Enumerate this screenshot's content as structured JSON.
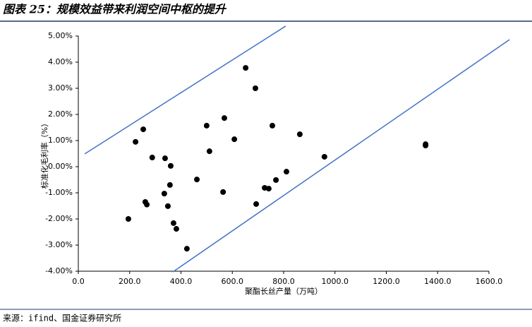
{
  "chart_data": {
    "type": "scatter",
    "title": "图表 25：规模效益带来利润空间中枢的提升",
    "source": "来源：ifind、国金证券研究所",
    "x_label": "聚酯长丝产量（万吨）",
    "y_label": "标准化毛利率（%）",
    "xlim": [
      0,
      1600
    ],
    "xticks": [
      {
        "value": 0,
        "label": "0.0"
      },
      {
        "value": 200,
        "label": "200.0"
      },
      {
        "value": 400,
        "label": "400.0"
      },
      {
        "value": 600,
        "label": "600.0"
      },
      {
        "value": 800,
        "label": "800.0"
      },
      {
        "value": 1000,
        "label": "1000.0"
      },
      {
        "value": 1200,
        "label": "1200.0"
      },
      {
        "value": 1400,
        "label": "1400.0"
      },
      {
        "value": 1600,
        "label": "1600.0"
      }
    ],
    "ylim": [
      -4,
      5
    ],
    "yticks": [
      {
        "value": -4,
        "label": "-4.00%"
      },
      {
        "value": -3,
        "label": "-3.00%"
      },
      {
        "value": -2,
        "label": "-2.00%"
      },
      {
        "value": -1,
        "label": "-1.00%"
      },
      {
        "value": 0,
        "label": "0.00%"
      },
      {
        "value": 1,
        "label": "1.00%"
      },
      {
        "value": 2,
        "label": "2.00%"
      },
      {
        "value": 3,
        "label": "3.00%"
      },
      {
        "value": 4,
        "label": "4.00%"
      },
      {
        "value": 5,
        "label": "5.00%"
      }
    ],
    "series": [
      {
        "color": "#000000",
        "x": [
          195,
          223,
          253,
          261,
          267,
          288,
          335,
          338,
          349,
          357,
          360,
          371,
          382,
          423,
          462,
          500,
          511,
          564,
          569,
          608,
          652,
          690,
          693,
          726,
          742,
          756,
          770,
          811,
          863,
          959,
          1353,
          1353
        ],
        "values": [
          -2.0,
          0.95,
          1.43,
          -1.35,
          -1.45,
          0.35,
          -1.03,
          0.32,
          -1.51,
          -0.7,
          0.03,
          -2.16,
          -2.38,
          -3.14,
          -0.49,
          1.57,
          0.59,
          -0.97,
          1.86,
          1.05,
          3.78,
          3.0,
          -1.43,
          -0.81,
          -0.84,
          1.57,
          -0.51,
          -0.19,
          1.24,
          0.38,
          0.86,
          0.81
        ]
      }
    ],
    "lines": [
      {
        "color": "#4472c4",
        "x": [
          25,
          808
        ],
        "values": [
          0.49,
          5.38
        ]
      },
      {
        "color": "#4472c4",
        "x": [
          368,
          1680
        ],
        "values": [
          -4.03,
          4.86
        ]
      }
    ]
  }
}
